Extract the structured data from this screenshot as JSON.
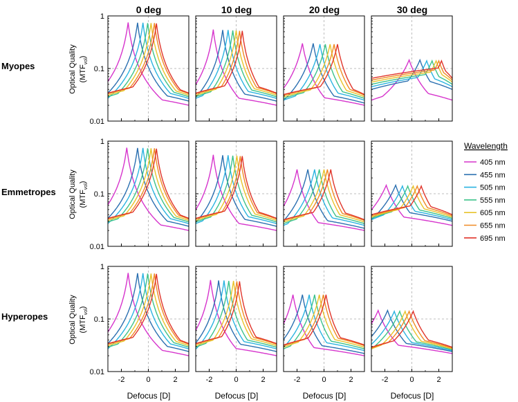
{
  "figure": {
    "legend_title": "Wavelength",
    "ylabel_main": "Optical Quality",
    "ylabel_sub_prefix": "(MTF",
    "ylabel_sub_subscript": "vol",
    "ylabel_sub_suffix": ")",
    "xlabel": "Defocus [D]"
  },
  "colors": {
    "405 nm": "#d633cc",
    "455 nm": "#2a6fb0",
    "505 nm": "#2ab3e0",
    "555 nm": "#3cc28a",
    "605 nm": "#e8c32a",
    "655 nm": "#f08a24",
    "695 nm": "#e0342a"
  },
  "chart_data": {
    "type": "line",
    "layout": "3x4 grid of log-scale line charts",
    "columns": [
      "0 deg",
      "10 deg",
      "20 deg",
      "30 deg"
    ],
    "rows": [
      "Myopes",
      "Emmetropes",
      "Hyperopes"
    ],
    "xlim": [
      -3,
      3
    ],
    "xticks": [
      -2,
      0,
      2
    ],
    "xtick_labels": [
      "-2",
      "0",
      "2"
    ],
    "ylim": [
      0.01,
      1
    ],
    "yscale": "log",
    "yticks": [
      1,
      0.1,
      0.01
    ],
    "ytick_labels": [
      "1",
      "0.1",
      "0.01"
    ],
    "reference_lines": {
      "x": 0,
      "y": 0.1
    },
    "series_names": [
      "405 nm",
      "455 nm",
      "505 nm",
      "555 nm",
      "605 nm",
      "655 nm",
      "695 nm"
    ],
    "curve_shape": "asymmetric peak; value = peak / (1 + |x - peak_x| / width)^2",
    "panels": [
      {
        "row": "Myopes",
        "column": "0 deg",
        "peak_x": [
          -1.5,
          -0.8,
          -0.4,
          -0.05,
          0.2,
          0.45,
          0.6
        ],
        "peak_y": [
          0.75,
          0.74,
          0.74,
          0.73,
          0.73,
          0.73,
          0.72
        ],
        "min_y": [
          0.02,
          0.024,
          0.027,
          0.029,
          0.031,
          0.033,
          0.034
        ]
      },
      {
        "row": "Myopes",
        "column": "10 deg",
        "peak_x": [
          -1.7,
          -1.0,
          -0.6,
          -0.25,
          0.0,
          0.25,
          0.45
        ],
        "peak_y": [
          0.55,
          0.54,
          0.54,
          0.53,
          0.53,
          0.52,
          0.52
        ],
        "min_y": [
          0.02,
          0.024,
          0.027,
          0.029,
          0.031,
          0.033,
          0.034
        ]
      },
      {
        "row": "Myopes",
        "column": "20 deg",
        "peak_x": [
          -1.6,
          -0.8,
          -0.3,
          0.1,
          0.45,
          0.75,
          1.0
        ],
        "peak_y": [
          0.3,
          0.3,
          0.29,
          0.29,
          0.29,
          0.29,
          0.29
        ],
        "min_y": [
          0.02,
          0.022,
          0.025,
          0.027,
          0.029,
          0.031,
          0.032
        ]
      },
      {
        "row": "Myopes",
        "column": "30 deg",
        "peak_x": [
          -0.2,
          0.6,
          1.1,
          1.5,
          1.8,
          2.0,
          2.2
        ],
        "peak_y": [
          0.145,
          0.145,
          0.14,
          0.14,
          0.14,
          0.14,
          0.14
        ],
        "min_y": [
          0.025,
          0.04,
          0.045,
          0.05,
          0.055,
          0.06,
          0.065
        ]
      },
      {
        "row": "Emmetropes",
        "column": "0 deg",
        "peak_x": [
          -1.6,
          -0.8,
          -0.4,
          -0.05,
          0.2,
          0.45,
          0.6
        ],
        "peak_y": [
          0.75,
          0.74,
          0.74,
          0.73,
          0.73,
          0.73,
          0.72
        ],
        "min_y": [
          0.02,
          0.024,
          0.027,
          0.029,
          0.031,
          0.033,
          0.034
        ]
      },
      {
        "row": "Emmetropes",
        "column": "10 deg",
        "peak_x": [
          -1.7,
          -1.0,
          -0.6,
          -0.25,
          0.05,
          0.3,
          0.45
        ],
        "peak_y": [
          0.55,
          0.54,
          0.54,
          0.53,
          0.53,
          0.52,
          0.52
        ],
        "min_y": [
          0.02,
          0.024,
          0.027,
          0.029,
          0.031,
          0.033,
          0.034
        ]
      },
      {
        "row": "Emmetropes",
        "column": "20 deg",
        "peak_x": [
          -2.0,
          -1.2,
          -0.7,
          -0.35,
          0.0,
          0.25,
          0.5
        ],
        "peak_y": [
          0.29,
          0.29,
          0.29,
          0.29,
          0.29,
          0.29,
          0.29
        ],
        "min_y": [
          0.02,
          0.022,
          0.025,
          0.027,
          0.029,
          0.031,
          0.032
        ]
      },
      {
        "row": "Emmetropes",
        "column": "30 deg",
        "peak_x": [
          -1.9,
          -1.2,
          -0.7,
          -0.3,
          0.1,
          0.4,
          0.7
        ],
        "peak_y": [
          0.145,
          0.145,
          0.14,
          0.14,
          0.14,
          0.14,
          0.14
        ],
        "min_y": [
          0.025,
          0.03,
          0.032,
          0.034,
          0.036,
          0.038,
          0.04
        ]
      },
      {
        "row": "Hyperopes",
        "column": "0 deg",
        "peak_x": [
          -1.5,
          -0.8,
          -0.4,
          -0.05,
          0.2,
          0.45,
          0.6
        ],
        "peak_y": [
          0.75,
          0.74,
          0.74,
          0.73,
          0.73,
          0.73,
          0.72
        ],
        "min_y": [
          0.02,
          0.024,
          0.027,
          0.029,
          0.031,
          0.033,
          0.034
        ]
      },
      {
        "row": "Hyperopes",
        "column": "10 deg",
        "peak_x": [
          -1.9,
          -1.3,
          -0.9,
          -0.55,
          -0.2,
          0.05,
          0.25
        ],
        "peak_y": [
          0.55,
          0.54,
          0.54,
          0.53,
          0.53,
          0.52,
          0.52
        ],
        "min_y": [
          0.02,
          0.024,
          0.027,
          0.029,
          0.031,
          0.033,
          0.034
        ]
      },
      {
        "row": "Hyperopes",
        "column": "20 deg",
        "peak_x": [
          -2.3,
          -1.6,
          -1.1,
          -0.7,
          -0.35,
          -0.05,
          0.15
        ],
        "peak_y": [
          0.29,
          0.29,
          0.29,
          0.29,
          0.29,
          0.29,
          0.29
        ],
        "min_y": [
          0.02,
          0.022,
          0.025,
          0.027,
          0.029,
          0.031,
          0.032
        ]
      },
      {
        "row": "Hyperopes",
        "column": "30 deg",
        "peak_x": [
          -2.5,
          -1.8,
          -1.3,
          -0.9,
          -0.5,
          -0.2,
          0.1
        ],
        "peak_y": [
          0.145,
          0.145,
          0.14,
          0.14,
          0.14,
          0.14,
          0.14
        ],
        "min_y": [
          0.022,
          0.024,
          0.025,
          0.026,
          0.027,
          0.028,
          0.029
        ]
      }
    ]
  }
}
